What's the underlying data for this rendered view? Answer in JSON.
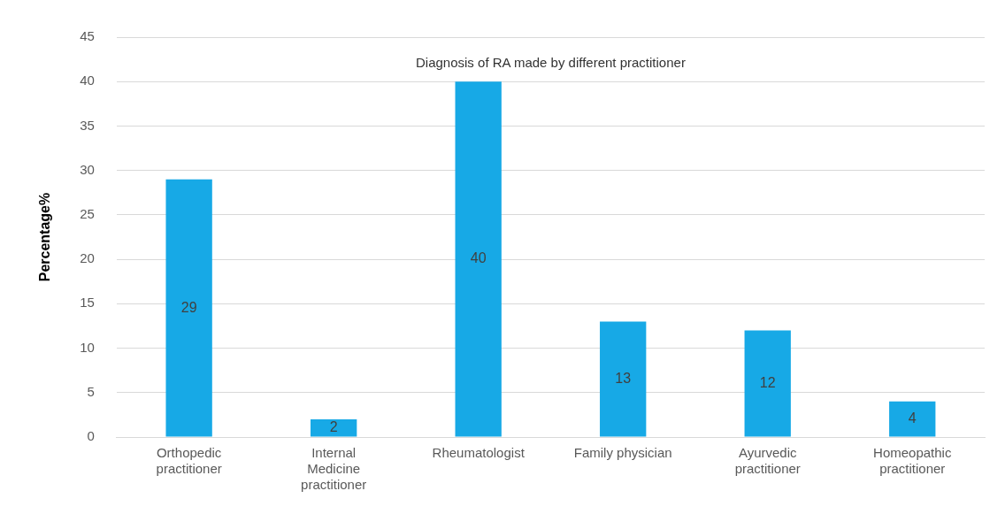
{
  "chart_data": {
    "type": "bar",
    "title": "Diagnosis of RA made by different practitioner",
    "ylabel": "Percentage%",
    "categories": [
      "Orthopedic practitioner",
      "Internal Medicine practitioner",
      "Rheumatologist",
      "Family physician",
      "Ayurvedic practitioner",
      "Homeopathic practitioner"
    ],
    "values": [
      29,
      2,
      40,
      13,
      12,
      4
    ],
    "color": "#17a9e6",
    "ylim": [
      0,
      45
    ],
    "yticks": [
      0,
      5,
      10,
      15,
      20,
      25,
      30,
      35,
      40,
      45
    ],
    "grid": "y",
    "data_labels": true,
    "legend": false
  }
}
